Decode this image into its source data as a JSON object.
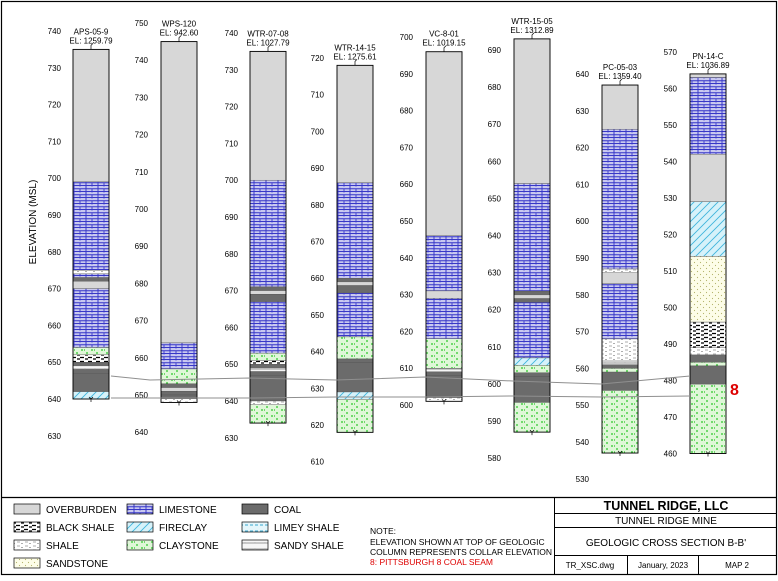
{
  "axis_label": "ELEVATION (MSL)",
  "map_label": "8",
  "legend": [
    {
      "label": "OVERBURDEN",
      "lith": "overburden"
    },
    {
      "label": "LIMESTONE",
      "lith": "limestone"
    },
    {
      "label": "COAL",
      "lith": "coal"
    },
    {
      "label": "BLACK SHALE",
      "lith": "blackshale"
    },
    {
      "label": "FIRECLAY",
      "lith": "fireclay"
    },
    {
      "label": "LIMEY SHALE",
      "lith": "limeyshale"
    },
    {
      "label": "SHALE",
      "lith": "shale"
    },
    {
      "label": "CLAYSTONE",
      "lith": "claystone"
    },
    {
      "label": "SANDY SHALE",
      "lith": "sandyshale"
    },
    {
      "label": "SANDSTONE",
      "lith": "sandstone"
    }
  ],
  "note": {
    "title": "NOTE:",
    "line1": "ELEVATION SHOWN AT TOP OF GEOLOGIC",
    "line2": "COLUMN REPRESENTS COLLAR ELEVATION",
    "key_num": "8",
    "key_text": ": PITTSBURGH 8 COAL SEAM"
  },
  "titleblock": {
    "company": "TUNNEL RIDGE, LLC",
    "mine": "TUNNEL RIDGE MINE",
    "section": "GEOLOGIC CROSS SECTION B-B'",
    "file": "TR_XSC.dwg",
    "date": "January, 2023",
    "map": "MAP 2"
  },
  "colors": {
    "overburden": "#d7d7d7",
    "limestone": "#c8c8f0",
    "limestone_line": "#3737c8",
    "coal": "#6b6b6b",
    "fireclay": "#d6f2fa",
    "fireclay_line": "#40b5dc",
    "claystone": "#dff7d8",
    "claystone_line": "#2fc82f",
    "sandstone": "#fdfde8",
    "sandstone_line": "#b4b46e",
    "accent_red": "#dd0000"
  },
  "columns": [
    {
      "id": "APS-05-9",
      "el": "EL: 1259.79",
      "ticks": [
        "740",
        "730",
        "720",
        "710",
        "700",
        "690",
        "680",
        "670",
        "660",
        "650",
        "640",
        "630"
      ],
      "tick_start": 740,
      "tick_step": 10,
      "top": 735,
      "bottom": 640,
      "layers": [
        {
          "lith": "overburden",
          "top": 735,
          "bottom": 699
        },
        {
          "lith": "limestone",
          "top": 699,
          "bottom": 675
        },
        {
          "lith": "shale",
          "top": 675,
          "bottom": 674
        },
        {
          "lith": "limestone",
          "top": 674,
          "bottom": 673
        },
        {
          "lith": "coal",
          "top": 673,
          "bottom": 672
        },
        {
          "lith": "overburden",
          "top": 672,
          "bottom": 670
        },
        {
          "lith": "limestone",
          "top": 670,
          "bottom": 654
        },
        {
          "lith": "claystone",
          "top": 654,
          "bottom": 652
        },
        {
          "lith": "blackshale",
          "top": 652,
          "bottom": 650
        },
        {
          "lith": "coal",
          "top": 650,
          "bottom": 649
        },
        {
          "lith": "sandyshale",
          "top": 649,
          "bottom": 648
        },
        {
          "lith": "coal",
          "top": 648,
          "bottom": 647
        },
        {
          "lith": "coal",
          "top": 647,
          "bottom": 642
        },
        {
          "lith": "fireclay",
          "top": 642,
          "bottom": 640
        }
      ]
    },
    {
      "id": "WPS-120",
      "el": "EL: 942.60",
      "ticks": [
        "750",
        "740",
        "730",
        "720",
        "710",
        "700",
        "690",
        "680",
        "670",
        "660",
        "650",
        "640"
      ],
      "tick_start": 750,
      "tick_step": 10,
      "top": 745,
      "bottom": 648,
      "layers": [
        {
          "lith": "overburden",
          "top": 745,
          "bottom": 664
        },
        {
          "lith": "limestone",
          "top": 664,
          "bottom": 657
        },
        {
          "lith": "claystone",
          "top": 657,
          "bottom": 653
        },
        {
          "lith": "coal",
          "top": 653,
          "bottom": 652
        },
        {
          "lith": "overburden",
          "top": 652,
          "bottom": 651
        },
        {
          "lith": "coal",
          "top": 651,
          "bottom": 650
        },
        {
          "lith": "coal",
          "top": 650,
          "bottom": 649
        },
        {
          "lith": "shale",
          "top": 649,
          "bottom": 648
        }
      ]
    },
    {
      "id": "WTR-07-08",
      "el": "EL: 1027.79",
      "ticks": [
        "740",
        "730",
        "720",
        "710",
        "700",
        "690",
        "680",
        "670",
        "660",
        "650",
        "640",
        "630"
      ],
      "tick_start": 740,
      "tick_step": 10,
      "top": 735,
      "bottom": 634,
      "layers": [
        {
          "lith": "overburden",
          "top": 735,
          "bottom": 700
        },
        {
          "lith": "limestone",
          "top": 700,
          "bottom": 671
        },
        {
          "lith": "coal",
          "top": 671,
          "bottom": 670
        },
        {
          "lith": "overburden",
          "top": 670,
          "bottom": 669
        },
        {
          "lith": "coal",
          "top": 669,
          "bottom": 667
        },
        {
          "lith": "limestone",
          "top": 667,
          "bottom": 653
        },
        {
          "lith": "claystone",
          "top": 653,
          "bottom": 651
        },
        {
          "lith": "blackshale",
          "top": 651,
          "bottom": 650
        },
        {
          "lith": "coal",
          "top": 650,
          "bottom": 649
        },
        {
          "lith": "sandyshale",
          "top": 649,
          "bottom": 648
        },
        {
          "lith": "coal",
          "top": 648,
          "bottom": 647
        },
        {
          "lith": "coal",
          "top": 647,
          "bottom": 640
        },
        {
          "lith": "shale",
          "top": 640,
          "bottom": 639
        },
        {
          "lith": "claystone",
          "top": 639,
          "bottom": 634
        }
      ]
    },
    {
      "id": "WTR-14-15",
      "el": "EL: 1275.61",
      "ticks": [
        "720",
        "710",
        "700",
        "690",
        "680",
        "670",
        "660",
        "650",
        "640",
        "630",
        "620",
        "610"
      ],
      "tick_start": 720,
      "tick_step": 10,
      "top": 718,
      "bottom": 618,
      "layers": [
        {
          "lith": "overburden",
          "top": 718,
          "bottom": 686
        },
        {
          "lith": "limestone",
          "top": 686,
          "bottom": 660
        },
        {
          "lith": "coal",
          "top": 660,
          "bottom": 659
        },
        {
          "lith": "overburden",
          "top": 659,
          "bottom": 658
        },
        {
          "lith": "coal",
          "top": 658,
          "bottom": 656
        },
        {
          "lith": "limestone",
          "top": 656,
          "bottom": 644
        },
        {
          "lith": "claystone",
          "top": 644,
          "bottom": 638
        },
        {
          "lith": "coal",
          "top": 638,
          "bottom": 637
        },
        {
          "lith": "coal",
          "top": 637,
          "bottom": 629
        },
        {
          "lith": "fireclay",
          "top": 629,
          "bottom": 627
        },
        {
          "lith": "claystone",
          "top": 627,
          "bottom": 618
        }
      ]
    },
    {
      "id": "VC-8-01",
      "el": "EL: 1019.15",
      "ticks": [
        "700",
        "690",
        "680",
        "670",
        "660",
        "650",
        "640",
        "630",
        "620",
        "610",
        "600"
      ],
      "tick_start": 700,
      "tick_step": 10,
      "top": 696,
      "bottom": 601,
      "layers": [
        {
          "lith": "overburden",
          "top": 696,
          "bottom": 646
        },
        {
          "lith": "limestone",
          "top": 646,
          "bottom": 631
        },
        {
          "lith": "overburden",
          "top": 631,
          "bottom": 629
        },
        {
          "lith": "limestone",
          "top": 629,
          "bottom": 618
        },
        {
          "lith": "claystone",
          "top": 618,
          "bottom": 610
        },
        {
          "lith": "sandyshale",
          "top": 610,
          "bottom": 609
        },
        {
          "lith": "coal",
          "top": 609,
          "bottom": 608
        },
        {
          "lith": "coal",
          "top": 608,
          "bottom": 602
        },
        {
          "lith": "shale",
          "top": 602,
          "bottom": 601
        }
      ]
    },
    {
      "id": "WTR-15-05",
      "el": "EL: 1312.89",
      "ticks": [
        "690",
        "680",
        "670",
        "660",
        "650",
        "640",
        "630",
        "620",
        "610",
        "600",
        "590",
        "580"
      ],
      "tick_start": 690,
      "tick_step": 10,
      "top": 693,
      "bottom": 587,
      "layers": [
        {
          "lith": "overburden",
          "top": 693,
          "bottom": 654
        },
        {
          "lith": "limestone",
          "top": 654,
          "bottom": 625
        },
        {
          "lith": "coal",
          "top": 625,
          "bottom": 624
        },
        {
          "lith": "overburden",
          "top": 624,
          "bottom": 623
        },
        {
          "lith": "coal",
          "top": 623,
          "bottom": 622
        },
        {
          "lith": "limestone",
          "top": 622,
          "bottom": 607
        },
        {
          "lith": "fireclay",
          "top": 607,
          "bottom": 605
        },
        {
          "lith": "claystone",
          "top": 605,
          "bottom": 603
        },
        {
          "lith": "coal",
          "top": 603,
          "bottom": 602
        },
        {
          "lith": "coal",
          "top": 602,
          "bottom": 595
        },
        {
          "lith": "claystone",
          "top": 595,
          "bottom": 587
        }
      ]
    },
    {
      "id": "PC-05-03",
      "el": "EL: 1359.40",
      "ticks": [
        "640",
        "630",
        "620",
        "610",
        "600",
        "590",
        "580",
        "570",
        "560",
        "550",
        "540",
        "530"
      ],
      "tick_start": 640,
      "tick_step": 10,
      "top": 637,
      "bottom": 537,
      "layers": [
        {
          "lith": "overburden",
          "top": 637,
          "bottom": 625
        },
        {
          "lith": "limestone",
          "top": 625,
          "bottom": 587
        },
        {
          "lith": "shale",
          "top": 587,
          "bottom": 586
        },
        {
          "lith": "overburden",
          "top": 586,
          "bottom": 583
        },
        {
          "lith": "limestone",
          "top": 583,
          "bottom": 568
        },
        {
          "lith": "shale",
          "top": 568,
          "bottom": 562
        },
        {
          "lith": "sandyshale",
          "top": 562,
          "bottom": 561
        },
        {
          "lith": "coal",
          "top": 561,
          "bottom": 560
        },
        {
          "lith": "claystone",
          "top": 560,
          "bottom": 559
        },
        {
          "lith": "coal",
          "top": 559,
          "bottom": 554
        },
        {
          "lith": "claystone",
          "top": 554,
          "bottom": 537
        }
      ]
    },
    {
      "id": "PN-14-C",
      "el": "EL: 1036.89",
      "ticks": [
        "570",
        "560",
        "550",
        "540",
        "530",
        "520",
        "510",
        "500",
        "490",
        "480",
        "470",
        "460"
      ],
      "tick_start": 570,
      "tick_step": 10,
      "top": 564,
      "bottom": 460,
      "layers": [
        {
          "lith": "overburden",
          "top": 564,
          "bottom": 563
        },
        {
          "lith": "limestone",
          "top": 563,
          "bottom": 542
        },
        {
          "lith": "overburden",
          "top": 542,
          "bottom": 529
        },
        {
          "lith": "fireclay",
          "top": 529,
          "bottom": 514
        },
        {
          "lith": "sandstone",
          "top": 514,
          "bottom": 496
        },
        {
          "lith": "blackshale",
          "top": 496,
          "bottom": 489
        },
        {
          "lith": "shale",
          "top": 489,
          "bottom": 487
        },
        {
          "lith": "coal",
          "top": 487,
          "bottom": 485
        },
        {
          "lith": "claystone",
          "top": 485,
          "bottom": 484
        },
        {
          "lith": "coal",
          "top": 484,
          "bottom": 479
        },
        {
          "lith": "claystone",
          "top": 479,
          "bottom": 460
        }
      ]
    }
  ]
}
